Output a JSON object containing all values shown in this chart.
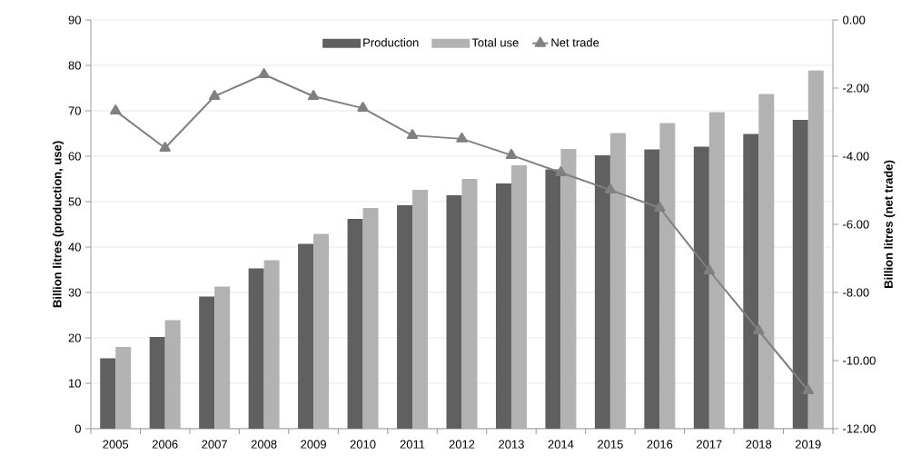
{
  "chart_data": {
    "type": "bar",
    "ylabel": "Billion litres (production, use)",
    "y2label": "Billion litres (net trade)",
    "categories": [
      "2005",
      "2006",
      "2007",
      "2008",
      "2009",
      "2010",
      "2011",
      "2012",
      "2013",
      "2014",
      "2015",
      "2016",
      "2017",
      "2018",
      "2019"
    ],
    "series": [
      {
        "name": "Production",
        "color": "#606060",
        "values": [
          15.5,
          20.2,
          29.1,
          35.3,
          40.7,
          46.2,
          49.2,
          51.4,
          54.0,
          57.1,
          60.2,
          61.5,
          62.1,
          64.9,
          68.0
        ]
      },
      {
        "name": "Total use",
        "color": "#b2b2b2",
        "values": [
          18.0,
          23.9,
          31.3,
          37.1,
          42.9,
          48.6,
          52.6,
          55.0,
          58.0,
          61.6,
          65.1,
          67.3,
          69.7,
          73.7,
          78.9
        ]
      },
      {
        "name": "Net trade",
        "type": "line",
        "axis": "y2",
        "color": "#808080",
        "marker": "triangle",
        "line_style": "solid",
        "values": [
          -2.67,
          -3.76,
          -2.24,
          -1.6,
          -2.24,
          -2.59,
          -3.39,
          -3.49,
          -3.97,
          -4.48,
          -4.99,
          -5.52,
          -7.36,
          -9.12,
          -10.88
        ]
      }
    ],
    "ylim": [
      0,
      90
    ],
    "yticks": [
      0,
      10,
      20,
      30,
      40,
      50,
      60,
      70,
      80,
      90
    ],
    "y2lim": [
      -12,
      0
    ],
    "y2ticks": [
      {
        "value": -12,
        "label": "-12.00"
      },
      {
        "value": -10,
        "label": "-10.00"
      },
      {
        "value": -8,
        "label": "-8.00"
      },
      {
        "value": -6,
        "label": "-6.00"
      },
      {
        "value": -4,
        "label": "-4.00"
      },
      {
        "value": -2,
        "label": "-2.00"
      },
      {
        "value": 0,
        "label": "0.00"
      }
    ],
    "grid": "y",
    "legend": "top"
  }
}
